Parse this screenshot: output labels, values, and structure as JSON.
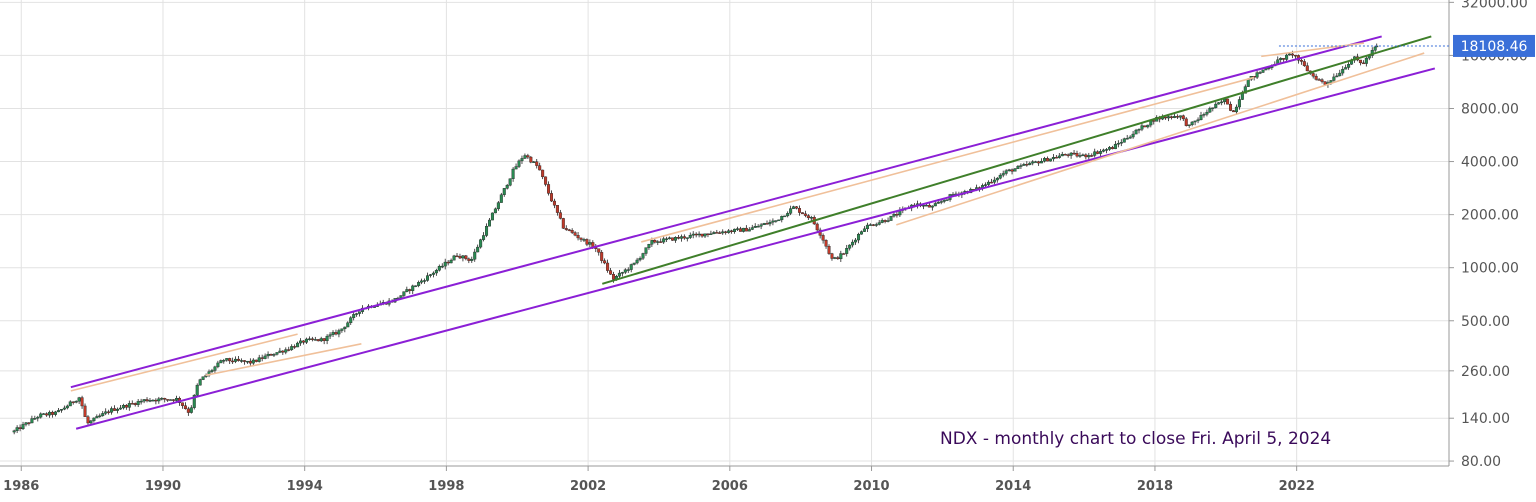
{
  "chart_data": {
    "type": "candlestick",
    "symbol": "NDX",
    "annotation": "NDX - monthly chart to close Fri. April 5, 2024",
    "y_scale": "log",
    "ylim": [
      75,
      33000
    ],
    "xlim": [
      1985.4,
      2026.3
    ],
    "y_tick_labels": [
      "32000.00",
      "16000.00",
      "8000.00",
      "4000.00",
      "2000.00",
      "1000.00",
      "500.00",
      "260.00",
      "140.00",
      "80.00"
    ],
    "x_tick_labels": [
      "1986",
      "1990",
      "1994",
      "1998",
      "2002",
      "2006",
      "2010",
      "2014",
      "2018",
      "2022"
    ],
    "last_price": 18108.46,
    "last_price_label": "18108.46",
    "price_anchors": [
      [
        1985.8,
        118
      ],
      [
        1986.5,
        145
      ],
      [
        1987.0,
        150
      ],
      [
        1987.65,
        185
      ],
      [
        1987.85,
        130
      ],
      [
        1988.5,
        155
      ],
      [
        1989.5,
        178
      ],
      [
        1990.4,
        180
      ],
      [
        1990.75,
        150
      ],
      [
        1991.0,
        225
      ],
      [
        1991.7,
        300
      ],
      [
        1992.5,
        290
      ],
      [
        1993.0,
        320
      ],
      [
        1993.5,
        345
      ],
      [
        1994.0,
        385
      ],
      [
        1994.5,
        390
      ],
      [
        1995.0,
        440
      ],
      [
        1995.6,
        590
      ],
      [
        1996.5,
        650
      ],
      [
        1997.5,
        900
      ],
      [
        1998.3,
        1180
      ],
      [
        1998.7,
        1100
      ],
      [
        1999.3,
        2000
      ],
      [
        1999.9,
        3600
      ],
      [
        2000.2,
        4400
      ],
      [
        2000.6,
        3700
      ],
      [
        2000.9,
        2600
      ],
      [
        2001.3,
        1700
      ],
      [
        2001.7,
        1500
      ],
      [
        2002.2,
        1300
      ],
      [
        2002.7,
        860
      ],
      [
        2003.3,
        1050
      ],
      [
        2003.8,
        1400
      ],
      [
        2004.5,
        1470
      ],
      [
        2005.5,
        1580
      ],
      [
        2006.5,
        1650
      ],
      [
        2007.3,
        1850
      ],
      [
        2007.8,
        2200
      ],
      [
        2008.3,
        1900
      ],
      [
        2008.6,
        1500
      ],
      [
        2008.9,
        1100
      ],
      [
        2009.2,
        1200
      ],
      [
        2009.8,
        1700
      ],
      [
        2010.5,
        1900
      ],
      [
        2011.2,
        2300
      ],
      [
        2011.7,
        2200
      ],
      [
        2012.3,
        2600
      ],
      [
        2013.0,
        2800
      ],
      [
        2013.8,
        3500
      ],
      [
        2014.5,
        3900
      ],
      [
        2015.5,
        4400
      ],
      [
        2016.0,
        4300
      ],
      [
        2016.8,
        4800
      ],
      [
        2017.5,
        6000
      ],
      [
        2018.0,
        7000
      ],
      [
        2018.7,
        7300
      ],
      [
        2018.95,
        6300
      ],
      [
        2019.5,
        7800
      ],
      [
        2020.0,
        9000
      ],
      [
        2020.2,
        7500
      ],
      [
        2020.6,
        11500
      ],
      [
        2021.0,
        13000
      ],
      [
        2021.5,
        15000
      ],
      [
        2021.9,
        16400
      ],
      [
        2022.4,
        12500
      ],
      [
        2022.8,
        11000
      ],
      [
        2023.2,
        12800
      ],
      [
        2023.6,
        15500
      ],
      [
        2023.85,
        14300
      ],
      [
        2024.26,
        18108.46
      ]
    ],
    "trendlines": [
      {
        "color": "#8b1fd6",
        "points": [
          [
            1987.4,
            210
          ],
          [
            2024.4,
            20500
          ]
        ]
      },
      {
        "color": "#8b1fd6",
        "points": [
          [
            1987.55,
            122
          ],
          [
            2025.9,
            13500
          ]
        ]
      },
      {
        "color": "#3f7f2a",
        "points": [
          [
            2002.4,
            810
          ],
          [
            2025.8,
            20500
          ]
        ]
      },
      {
        "color": "#f0c09a",
        "points": [
          [
            1987.4,
            200
          ],
          [
            1993.8,
            420
          ]
        ]
      },
      {
        "color": "#f0c09a",
        "points": [
          [
            1991.2,
            245
          ],
          [
            1995.6,
            370
          ]
        ]
      },
      {
        "color": "#f0c09a",
        "points": [
          [
            2003.5,
            1400
          ],
          [
            2020.8,
            12000
          ]
        ]
      },
      {
        "color": "#f0c09a",
        "points": [
          [
            2010.7,
            1750
          ],
          [
            2025.6,
            16500
          ]
        ]
      },
      {
        "color": "#f0c09a",
        "points": [
          [
            2021.0,
            15800
          ],
          [
            2023.9,
            18800
          ]
        ]
      }
    ],
    "colors": {
      "up": "#2a8a52",
      "down": "#c03a2a",
      "wick": "#222222",
      "grid": "#e2e2e2",
      "price_label_bg": "#3a6fd8",
      "price_line": "#3a6fd8"
    },
    "grid": true
  }
}
